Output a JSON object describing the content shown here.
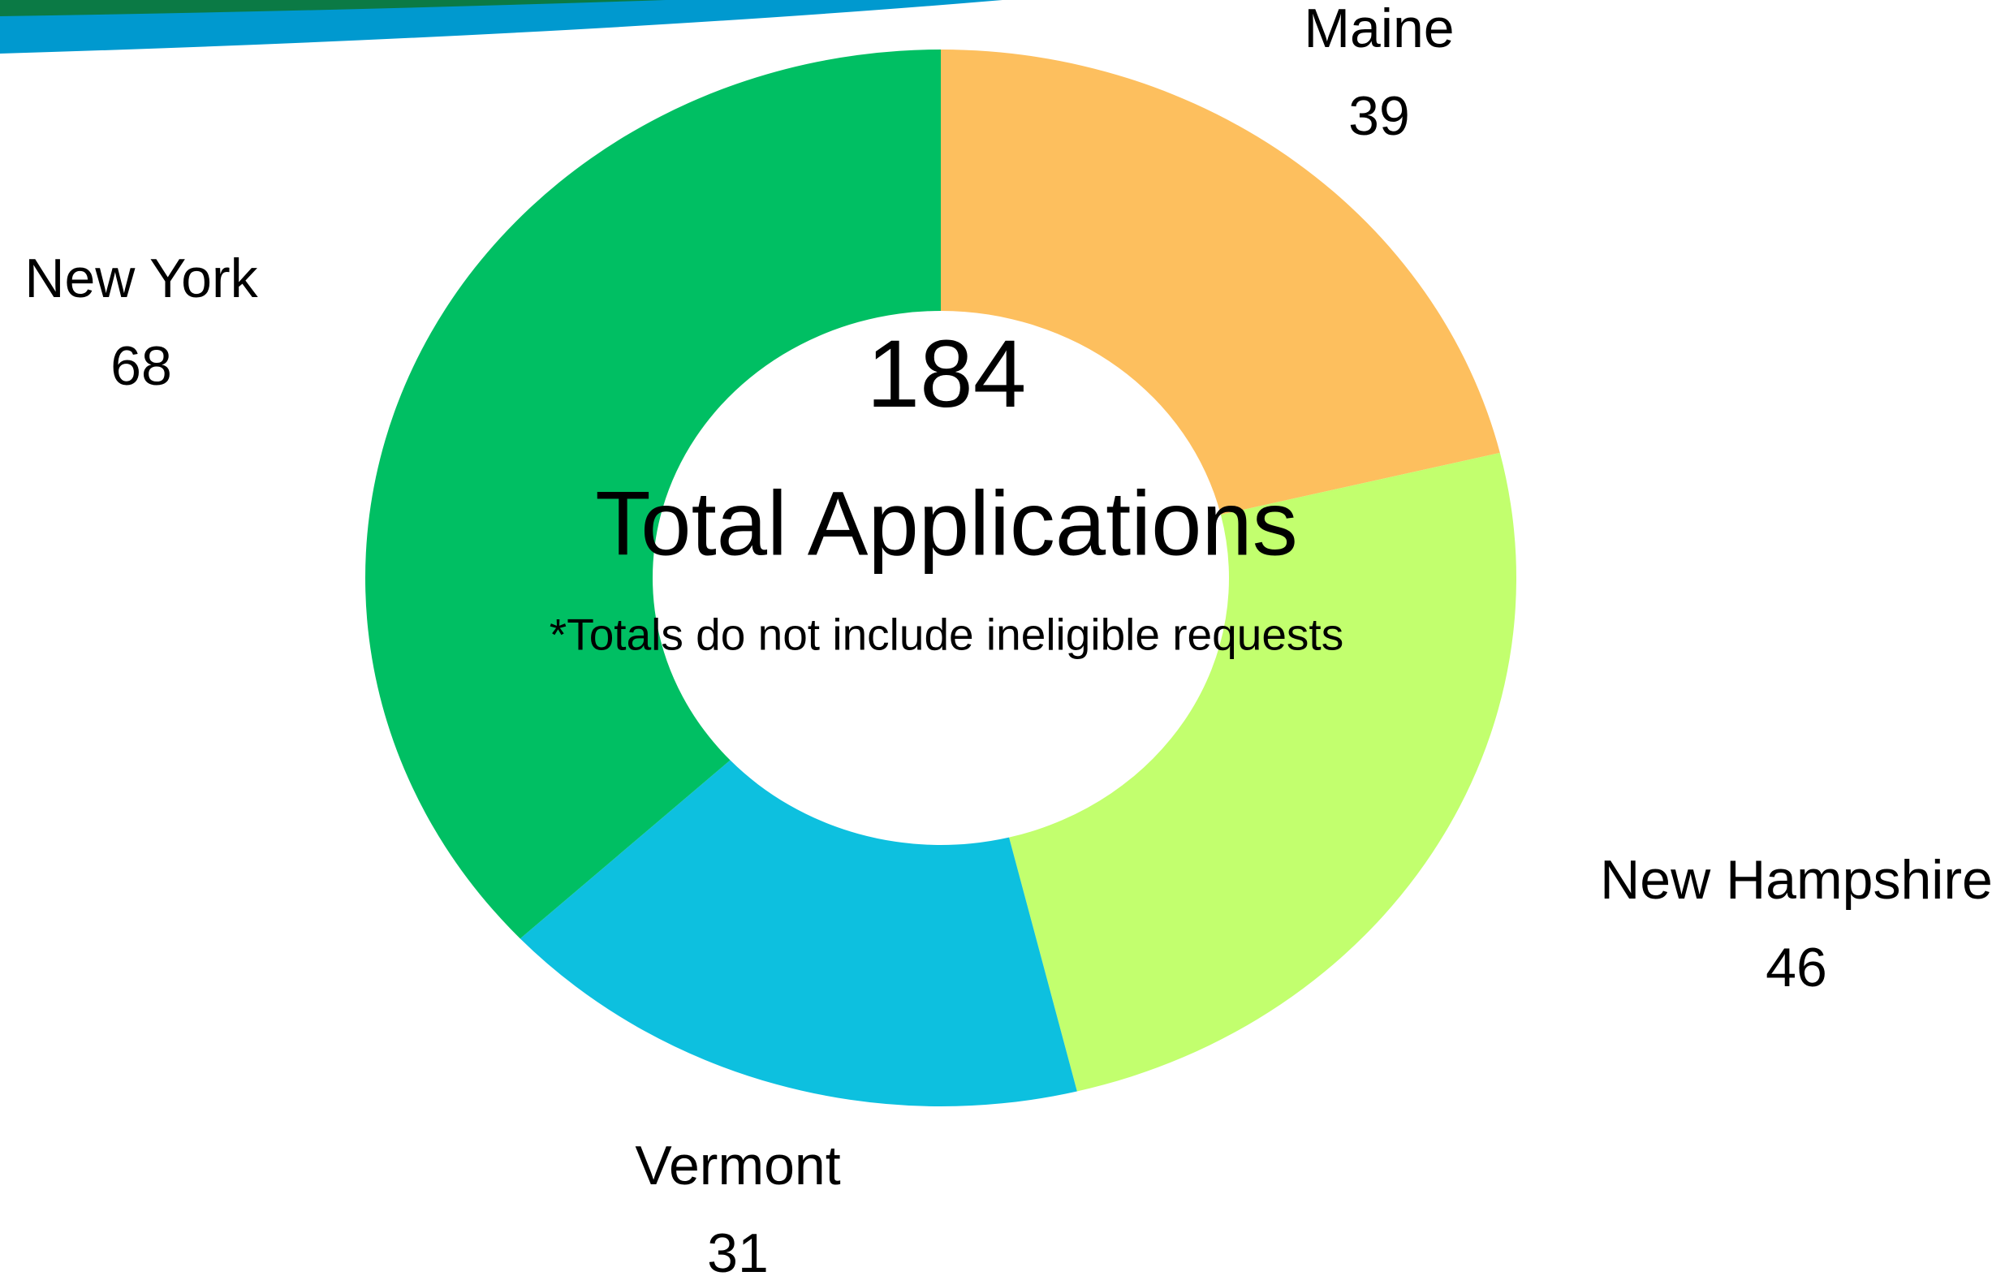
{
  "chart_data": {
    "type": "donut",
    "categories": [
      "Maine",
      "New Hampshire",
      "Vermont",
      "New York"
    ],
    "values": [
      39,
      46,
      31,
      68
    ],
    "colors": [
      "#fdbf5e",
      "#c2ff6e",
      "#0dc0df",
      "#00bf63"
    ],
    "center_value": "184",
    "center_label": "Total Applications",
    "note": "*Totals do not include ineligible requests"
  }
}
